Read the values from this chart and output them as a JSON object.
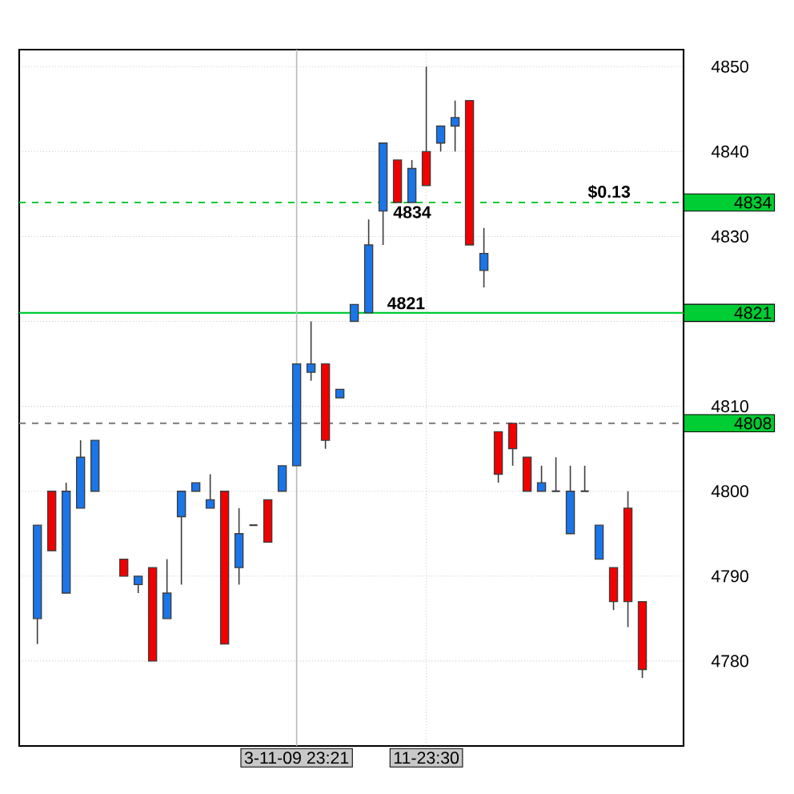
{
  "chart_data": {
    "type": "candlestick",
    "categories": [
      null,
      null,
      null,
      null,
      null,
      null,
      null,
      null,
      null,
      null,
      null,
      null,
      null,
      null,
      null,
      null,
      null,
      null,
      "3-11-09 23:21",
      null,
      null,
      null,
      null,
      null,
      null,
      null,
      null,
      "11-23:30",
      null,
      null,
      null,
      null,
      null,
      null,
      null,
      null,
      null,
      null,
      null,
      null,
      null,
      null,
      null
    ],
    "ohlc": [
      [
        4785,
        4796,
        4782,
        4796
      ],
      [
        4800,
        4800,
        4793,
        4793
      ],
      [
        4788,
        4801,
        4788,
        4800
      ],
      [
        4798,
        4806,
        4798,
        4804
      ],
      [
        4800,
        4806,
        4800,
        4806
      ],
      null,
      [
        4792,
        4792,
        4790,
        4790
      ],
      [
        4789,
        4790,
        4788,
        4790
      ],
      [
        4791,
        4791,
        4780,
        4780
      ],
      [
        4785,
        4792,
        4785,
        4788
      ],
      [
        4797,
        4800,
        4789,
        4800
      ],
      [
        4800,
        4801,
        4800,
        4801
      ],
      [
        4798,
        4802,
        4798,
        4799
      ],
      [
        4800,
        4800,
        4782,
        4782
      ],
      [
        4791,
        4798,
        4789,
        4795
      ],
      [
        4796,
        4796,
        4796,
        4796
      ],
      [
        4799,
        4799,
        4794,
        4794
      ],
      [
        4800,
        4803,
        4800,
        4803
      ],
      [
        4803,
        4815,
        4803,
        4815
      ],
      [
        4814,
        4820,
        4813,
        4815
      ],
      [
        4815,
        4815,
        4805,
        4806
      ],
      [
        4811,
        4812,
        4811,
        4812
      ],
      [
        4820,
        4822,
        4820,
        4822
      ],
      [
        4821,
        4832,
        4821,
        4829
      ],
      [
        4833,
        4841,
        4829,
        4841
      ],
      [
        4839,
        4839,
        4834,
        4834
      ],
      [
        4834,
        4839,
        4834,
        4838
      ],
      [
        4840,
        4850,
        4836,
        4836
      ],
      [
        4841,
        4843,
        4840,
        4843
      ],
      [
        4843,
        4846,
        4840,
        4844
      ],
      [
        4846,
        4846,
        4829,
        4829
      ],
      [
        4826,
        4831,
        4824,
        4828
      ],
      [
        4807,
        4807,
        4801,
        4802
      ],
      [
        4808,
        4808,
        4803,
        4805
      ],
      [
        4804,
        4804,
        4800,
        4800
      ],
      [
        4800,
        4803,
        4800,
        4801
      ],
      [
        4800,
        4804,
        4800,
        4800
      ],
      [
        4795,
        4803,
        4795,
        4800
      ],
      [
        4800,
        4803,
        4800,
        4800
      ],
      [
        4792,
        4796,
        4792,
        4796
      ],
      [
        4791,
        4791,
        4786,
        4787
      ],
      [
        4798,
        4800,
        4784,
        4787
      ],
      [
        4787,
        4787,
        4778,
        4779
      ]
    ],
    "colors": [
      "#1a75e8",
      "#f20000",
      "#1a75e8",
      "#1a75e8",
      "#1a75e8",
      null,
      "#f20000",
      "#1a75e8",
      "#f20000",
      "#1a75e8",
      "#1a75e8",
      "#1a75e8",
      "#1a75e8",
      "#f20000",
      "#1a75e8",
      "#333333",
      "#f20000",
      "#1a75e8",
      "#1a75e8",
      "#1a75e8",
      "#f20000",
      "#1a75e8",
      "#1a75e8",
      "#1a75e8",
      "#1a75e8",
      "#f20000",
      "#1a75e8",
      "#f20000",
      "#1a75e8",
      "#1a75e8",
      "#f20000",
      "#1a75e8",
      "#f20000",
      "#f20000",
      "#f20000",
      "#1a75e8",
      "#333333",
      "#1a75e8",
      "#333333",
      "#1a75e8",
      "#f20000",
      "#f20000",
      "#f20000"
    ],
    "ylim": [
      4770,
      4852
    ],
    "yticks": [
      4780,
      4790,
      4800,
      4810,
      {
        "value": 4820,
        "label": null
      },
      4830,
      4840,
      4850
    ],
    "grid": true,
    "ref_lines": [
      {
        "axis": "y",
        "value": 4834,
        "label": "4834",
        "color": "#00cc33",
        "line_style": "dashed"
      },
      {
        "axis": "y",
        "value": 4821,
        "label": "4821",
        "color": "#00cc33",
        "line_style": "solid"
      },
      {
        "axis": "y",
        "value": 4808,
        "label": "4808",
        "color": "#888888",
        "line_style": "dashed"
      },
      {
        "axis": "x",
        "value": "3-11-09 23:21",
        "color": "#bbbbbb",
        "line_style": "solid"
      }
    ],
    "annotations": [
      {
        "text": "4834",
        "y": 4834
      },
      {
        "text": "4821",
        "y": 4821
      },
      {
        "text": "$0.13",
        "y": 4834
      }
    ]
  }
}
